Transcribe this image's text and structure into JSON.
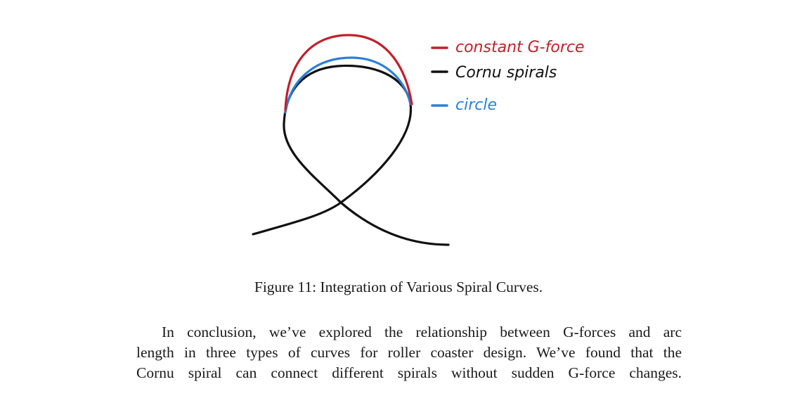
{
  "figure": {
    "legend": [
      {
        "label": "constant G-force",
        "color": "#c0202a"
      },
      {
        "label": "Cornu spirals",
        "color": "#111111"
      },
      {
        "label": "circle",
        "color": "#2b7fd6"
      }
    ],
    "caption": "Figure 11: Integration of Various Spiral Curves."
  },
  "body": {
    "lines": [
      "In conclusion, we’ve explored the relationship between G-forces and arc",
      "length in three types of curves for roller coaster design. We’ve found that the",
      "Cornu spiral can connect different spirals without sudden G-force changes."
    ]
  }
}
